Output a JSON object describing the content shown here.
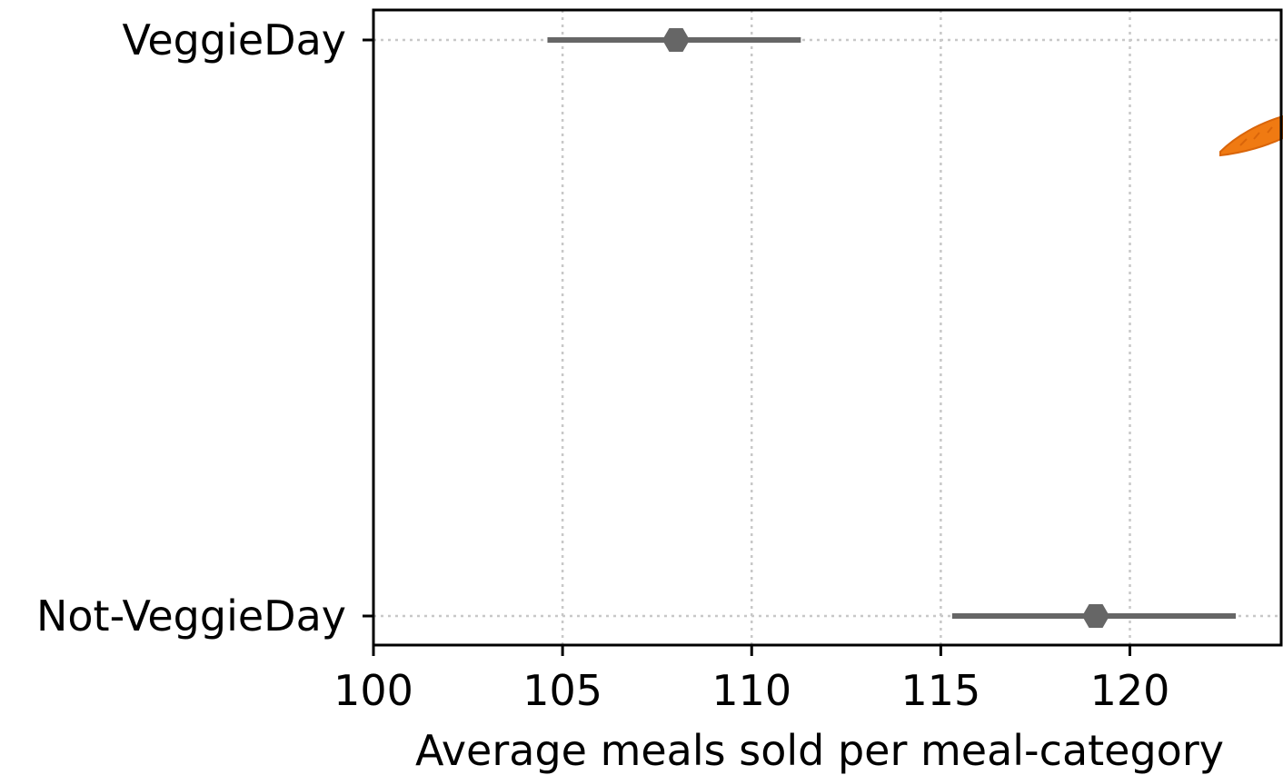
{
  "chart_data": {
    "type": "scatter",
    "orientation": "horizontal",
    "title": "",
    "xlabel": "Average meals sold per meal-category",
    "ylabel": "",
    "xlim": [
      100,
      124
    ],
    "x_ticks": [
      100,
      105,
      110,
      115,
      120
    ],
    "categories": [
      "VeggieDay",
      "Not-VeggieDay"
    ],
    "series": [
      {
        "points": [
          {
            "category": "VeggieDay",
            "value": 108.0,
            "ci_low": 104.6,
            "ci_high": 111.3
          },
          {
            "category": "Not-VeggieDay",
            "value": 119.1,
            "ci_low": 115.3,
            "ci_high": 122.8
          }
        ]
      }
    ],
    "grid": true,
    "grid_style": "dotted",
    "marker": "hexagon",
    "colors": {
      "marker": "#666666",
      "grid": "#c8c8c8",
      "axes": "#000000",
      "decoration": "#f07a12"
    },
    "decoration": "carrot"
  }
}
